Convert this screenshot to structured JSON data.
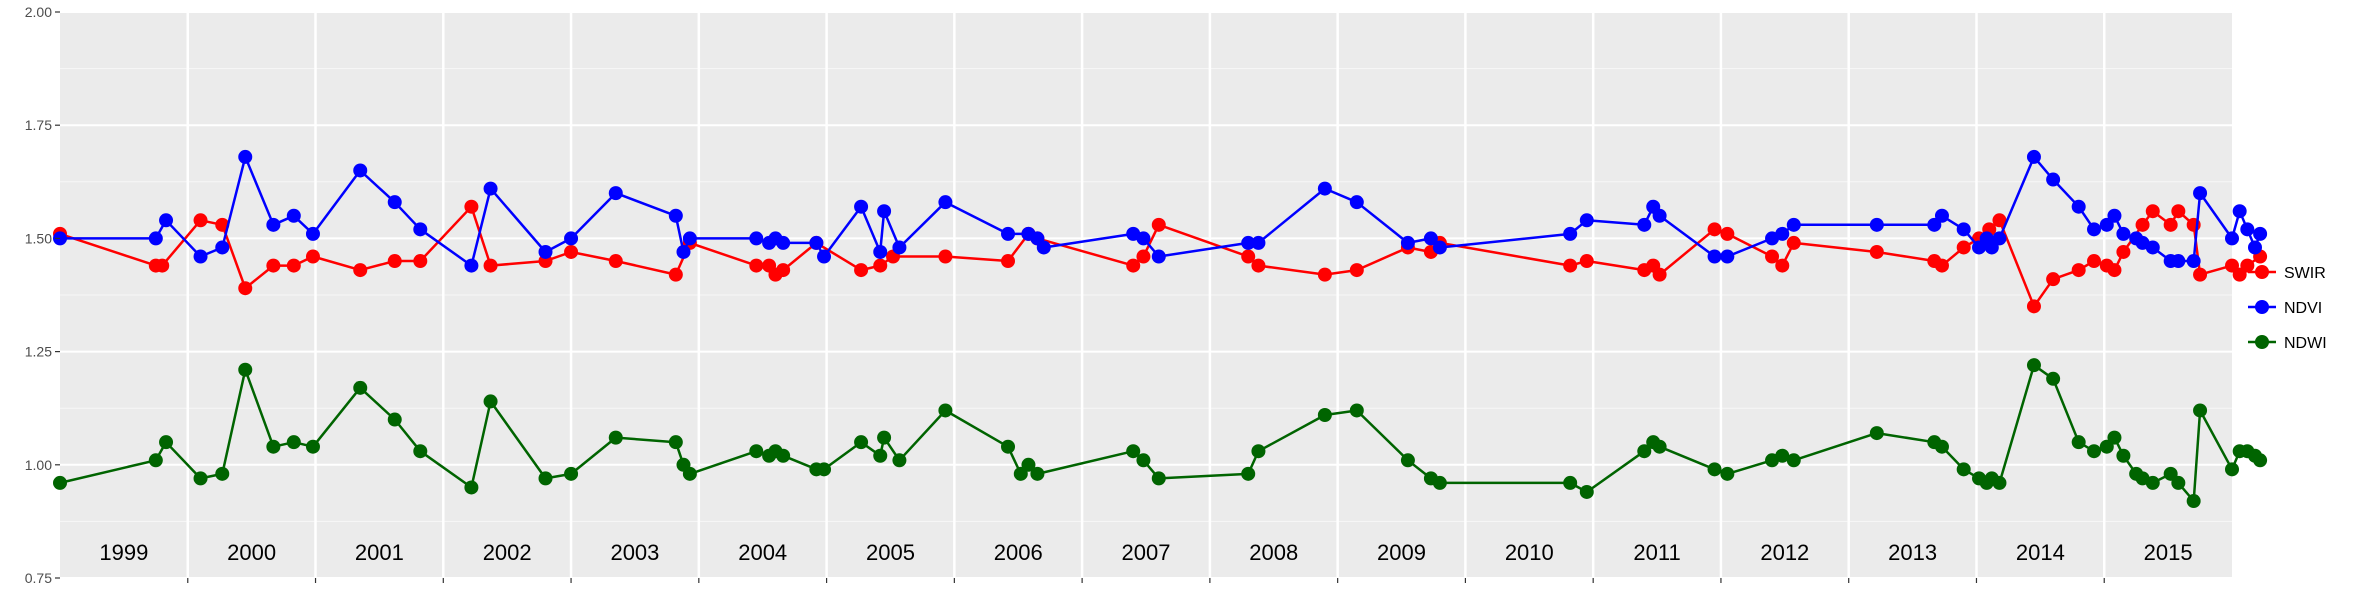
{
  "chart_data": {
    "type": "line",
    "title": "",
    "xlabel": "",
    "ylabel": "",
    "ylim": [
      0.75,
      2.0
    ],
    "yticks": [
      "2.00",
      "1.75",
      "1.50",
      "1.25",
      "1.00",
      "0.75"
    ],
    "xlim": [
      1999.0,
      2016.0
    ],
    "year_labels": [
      "1999",
      "2000",
      "2001",
      "2002",
      "2003",
      "2004",
      "2005",
      "2006",
      "2007",
      "2008",
      "2009",
      "2010",
      "2011",
      "2012",
      "2013",
      "2014",
      "2015"
    ],
    "grid": true,
    "legend": {
      "placement": "right",
      "entries": [
        "SWIR",
        "NDVI",
        "NDWI"
      ]
    },
    "series": [
      {
        "name": "SWIR",
        "color": "#ff0000",
        "points": [
          [
            1999.0,
            1.51
          ],
          [
            1999.75,
            1.44
          ],
          [
            1999.8,
            1.44
          ],
          [
            2000.1,
            1.54
          ],
          [
            2000.27,
            1.53
          ],
          [
            2000.45,
            1.39
          ],
          [
            2000.67,
            1.44
          ],
          [
            2000.83,
            1.44
          ],
          [
            2000.98,
            1.46
          ],
          [
            2001.35,
            1.43
          ],
          [
            2001.62,
            1.45
          ],
          [
            2001.82,
            1.45
          ],
          [
            2002.22,
            1.57
          ],
          [
            2002.37,
            1.44
          ],
          [
            2002.8,
            1.45
          ],
          [
            2003.0,
            1.47
          ],
          [
            2003.35,
            1.45
          ],
          [
            2003.82,
            1.42
          ],
          [
            2003.93,
            1.49
          ],
          [
            2004.45,
            1.44
          ],
          [
            2004.55,
            1.44
          ],
          [
            2004.6,
            1.42
          ],
          [
            2004.66,
            1.43
          ],
          [
            2004.92,
            1.49
          ],
          [
            2005.27,
            1.43
          ],
          [
            2005.42,
            1.44
          ],
          [
            2005.52,
            1.46
          ],
          [
            2005.93,
            1.46
          ],
          [
            2006.42,
            1.45
          ],
          [
            2006.58,
            1.51
          ],
          [
            2006.65,
            1.5
          ],
          [
            2007.4,
            1.44
          ],
          [
            2007.48,
            1.46
          ],
          [
            2007.6,
            1.53
          ],
          [
            2008.3,
            1.46
          ],
          [
            2008.38,
            1.44
          ],
          [
            2008.9,
            1.42
          ],
          [
            2009.15,
            1.43
          ],
          [
            2009.55,
            1.48
          ],
          [
            2009.73,
            1.47
          ],
          [
            2009.8,
            1.49
          ],
          [
            2010.82,
            1.44
          ],
          [
            2010.95,
            1.45
          ],
          [
            2011.4,
            1.43
          ],
          [
            2011.47,
            1.44
          ],
          [
            2011.52,
            1.42
          ],
          [
            2011.95,
            1.52
          ],
          [
            2012.05,
            1.51
          ],
          [
            2012.4,
            1.46
          ],
          [
            2012.48,
            1.44
          ],
          [
            2012.57,
            1.49
          ],
          [
            2013.22,
            1.47
          ],
          [
            2013.67,
            1.45
          ],
          [
            2013.73,
            1.44
          ],
          [
            2013.9,
            1.48
          ],
          [
            2014.02,
            1.5
          ],
          [
            2014.1,
            1.52
          ],
          [
            2014.18,
            1.54
          ],
          [
            2014.45,
            1.35
          ],
          [
            2014.6,
            1.41
          ],
          [
            2014.8,
            1.43
          ],
          [
            2014.92,
            1.45
          ],
          [
            2015.02,
            1.44
          ],
          [
            2015.08,
            1.43
          ],
          [
            2015.15,
            1.47
          ],
          [
            2015.3,
            1.53
          ],
          [
            2015.38,
            1.56
          ],
          [
            2015.52,
            1.53
          ],
          [
            2015.58,
            1.56
          ],
          [
            2015.7,
            1.53
          ],
          [
            2015.75,
            1.42
          ],
          [
            2016.0,
            1.44
          ],
          [
            2016.06,
            1.42
          ],
          [
            2016.12,
            1.44
          ],
          [
            2016.22,
            1.46
          ]
        ]
      },
      {
        "name": "NDVI",
        "color": "#0000ff",
        "points": [
          [
            1999.0,
            1.5
          ],
          [
            1999.75,
            1.5
          ],
          [
            1999.83,
            1.54
          ],
          [
            2000.1,
            1.46
          ],
          [
            2000.27,
            1.48
          ],
          [
            2000.45,
            1.68
          ],
          [
            2000.67,
            1.53
          ],
          [
            2000.83,
            1.55
          ],
          [
            2000.98,
            1.51
          ],
          [
            2001.35,
            1.65
          ],
          [
            2001.62,
            1.58
          ],
          [
            2001.82,
            1.52
          ],
          [
            2002.22,
            1.44
          ],
          [
            2002.37,
            1.61
          ],
          [
            2002.8,
            1.47
          ],
          [
            2003.0,
            1.5
          ],
          [
            2003.35,
            1.6
          ],
          [
            2003.82,
            1.55
          ],
          [
            2003.88,
            1.47
          ],
          [
            2003.93,
            1.5
          ],
          [
            2004.45,
            1.5
          ],
          [
            2004.55,
            1.49
          ],
          [
            2004.6,
            1.5
          ],
          [
            2004.66,
            1.49
          ],
          [
            2004.92,
            1.49
          ],
          [
            2004.98,
            1.46
          ],
          [
            2005.27,
            1.57
          ],
          [
            2005.42,
            1.47
          ],
          [
            2005.45,
            1.56
          ],
          [
            2005.57,
            1.48
          ],
          [
            2005.93,
            1.58
          ],
          [
            2006.42,
            1.51
          ],
          [
            2006.58,
            1.51
          ],
          [
            2006.65,
            1.5
          ],
          [
            2006.7,
            1.48
          ],
          [
            2007.4,
            1.51
          ],
          [
            2007.48,
            1.5
          ],
          [
            2007.6,
            1.46
          ],
          [
            2008.3,
            1.49
          ],
          [
            2008.38,
            1.49
          ],
          [
            2008.9,
            1.61
          ],
          [
            2009.15,
            1.58
          ],
          [
            2009.55,
            1.49
          ],
          [
            2009.73,
            1.5
          ],
          [
            2009.8,
            1.48
          ],
          [
            2010.82,
            1.51
          ],
          [
            2010.95,
            1.54
          ],
          [
            2011.4,
            1.53
          ],
          [
            2011.47,
            1.57
          ],
          [
            2011.52,
            1.55
          ],
          [
            2011.95,
            1.46
          ],
          [
            2012.05,
            1.46
          ],
          [
            2012.4,
            1.5
          ],
          [
            2012.48,
            1.51
          ],
          [
            2012.57,
            1.53
          ],
          [
            2013.22,
            1.53
          ],
          [
            2013.67,
            1.53
          ],
          [
            2013.73,
            1.55
          ],
          [
            2013.9,
            1.52
          ],
          [
            2014.02,
            1.48
          ],
          [
            2014.08,
            1.5
          ],
          [
            2014.12,
            1.48
          ],
          [
            2014.18,
            1.5
          ],
          [
            2014.45,
            1.68
          ],
          [
            2014.6,
            1.63
          ],
          [
            2014.8,
            1.57
          ],
          [
            2014.92,
            1.52
          ],
          [
            2015.02,
            1.53
          ],
          [
            2015.08,
            1.55
          ],
          [
            2015.15,
            1.51
          ],
          [
            2015.25,
            1.5
          ],
          [
            2015.3,
            1.49
          ],
          [
            2015.38,
            1.48
          ],
          [
            2015.52,
            1.45
          ],
          [
            2015.58,
            1.45
          ],
          [
            2015.7,
            1.45
          ],
          [
            2015.75,
            1.6
          ],
          [
            2016.0,
            1.5
          ],
          [
            2016.06,
            1.56
          ],
          [
            2016.12,
            1.52
          ],
          [
            2016.18,
            1.48
          ],
          [
            2016.22,
            1.51
          ]
        ]
      },
      {
        "name": "NDWI",
        "color": "#006400",
        "points": [
          [
            1999.0,
            0.96
          ],
          [
            1999.75,
            1.01
          ],
          [
            1999.83,
            1.05
          ],
          [
            2000.1,
            0.97
          ],
          [
            2000.27,
            0.98
          ],
          [
            2000.45,
            1.21
          ],
          [
            2000.67,
            1.04
          ],
          [
            2000.83,
            1.05
          ],
          [
            2000.98,
            1.04
          ],
          [
            2001.35,
            1.17
          ],
          [
            2001.62,
            1.1
          ],
          [
            2001.82,
            1.03
          ],
          [
            2002.22,
            0.95
          ],
          [
            2002.37,
            1.14
          ],
          [
            2002.8,
            0.97
          ],
          [
            2003.0,
            0.98
          ],
          [
            2003.35,
            1.06
          ],
          [
            2003.82,
            1.05
          ],
          [
            2003.88,
            1.0
          ],
          [
            2003.93,
            0.98
          ],
          [
            2004.45,
            1.03
          ],
          [
            2004.55,
            1.02
          ],
          [
            2004.6,
            1.03
          ],
          [
            2004.66,
            1.02
          ],
          [
            2004.92,
            0.99
          ],
          [
            2004.98,
            0.99
          ],
          [
            2005.27,
            1.05
          ],
          [
            2005.42,
            1.02
          ],
          [
            2005.45,
            1.06
          ],
          [
            2005.57,
            1.01
          ],
          [
            2005.93,
            1.12
          ],
          [
            2006.42,
            1.04
          ],
          [
            2006.52,
            0.98
          ],
          [
            2006.58,
            1.0
          ],
          [
            2006.65,
            0.98
          ],
          [
            2007.4,
            1.03
          ],
          [
            2007.48,
            1.01
          ],
          [
            2007.6,
            0.97
          ],
          [
            2008.3,
            0.98
          ],
          [
            2008.38,
            1.03
          ],
          [
            2008.9,
            1.11
          ],
          [
            2009.15,
            1.12
          ],
          [
            2009.55,
            1.01
          ],
          [
            2009.73,
            0.97
          ],
          [
            2009.8,
            0.96
          ],
          [
            2010.82,
            0.96
          ],
          [
            2010.95,
            0.94
          ],
          [
            2011.4,
            1.03
          ],
          [
            2011.47,
            1.05
          ],
          [
            2011.52,
            1.04
          ],
          [
            2011.95,
            0.99
          ],
          [
            2012.05,
            0.98
          ],
          [
            2012.4,
            1.01
          ],
          [
            2012.48,
            1.02
          ],
          [
            2012.57,
            1.01
          ],
          [
            2013.22,
            1.07
          ],
          [
            2013.67,
            1.05
          ],
          [
            2013.73,
            1.04
          ],
          [
            2013.9,
            0.99
          ],
          [
            2014.02,
            0.97
          ],
          [
            2014.08,
            0.96
          ],
          [
            2014.12,
            0.97
          ],
          [
            2014.18,
            0.96
          ],
          [
            2014.45,
            1.22
          ],
          [
            2014.6,
            1.19
          ],
          [
            2014.8,
            1.05
          ],
          [
            2014.92,
            1.03
          ],
          [
            2015.02,
            1.04
          ],
          [
            2015.08,
            1.06
          ],
          [
            2015.15,
            1.02
          ],
          [
            2015.25,
            0.98
          ],
          [
            2015.3,
            0.97
          ],
          [
            2015.38,
            0.96
          ],
          [
            2015.52,
            0.98
          ],
          [
            2015.58,
            0.96
          ],
          [
            2015.7,
            0.92
          ],
          [
            2015.75,
            1.12
          ],
          [
            2016.0,
            0.99
          ],
          [
            2016.06,
            1.03
          ],
          [
            2016.12,
            1.03
          ],
          [
            2016.18,
            1.02
          ],
          [
            2016.22,
            1.01
          ]
        ]
      }
    ]
  }
}
